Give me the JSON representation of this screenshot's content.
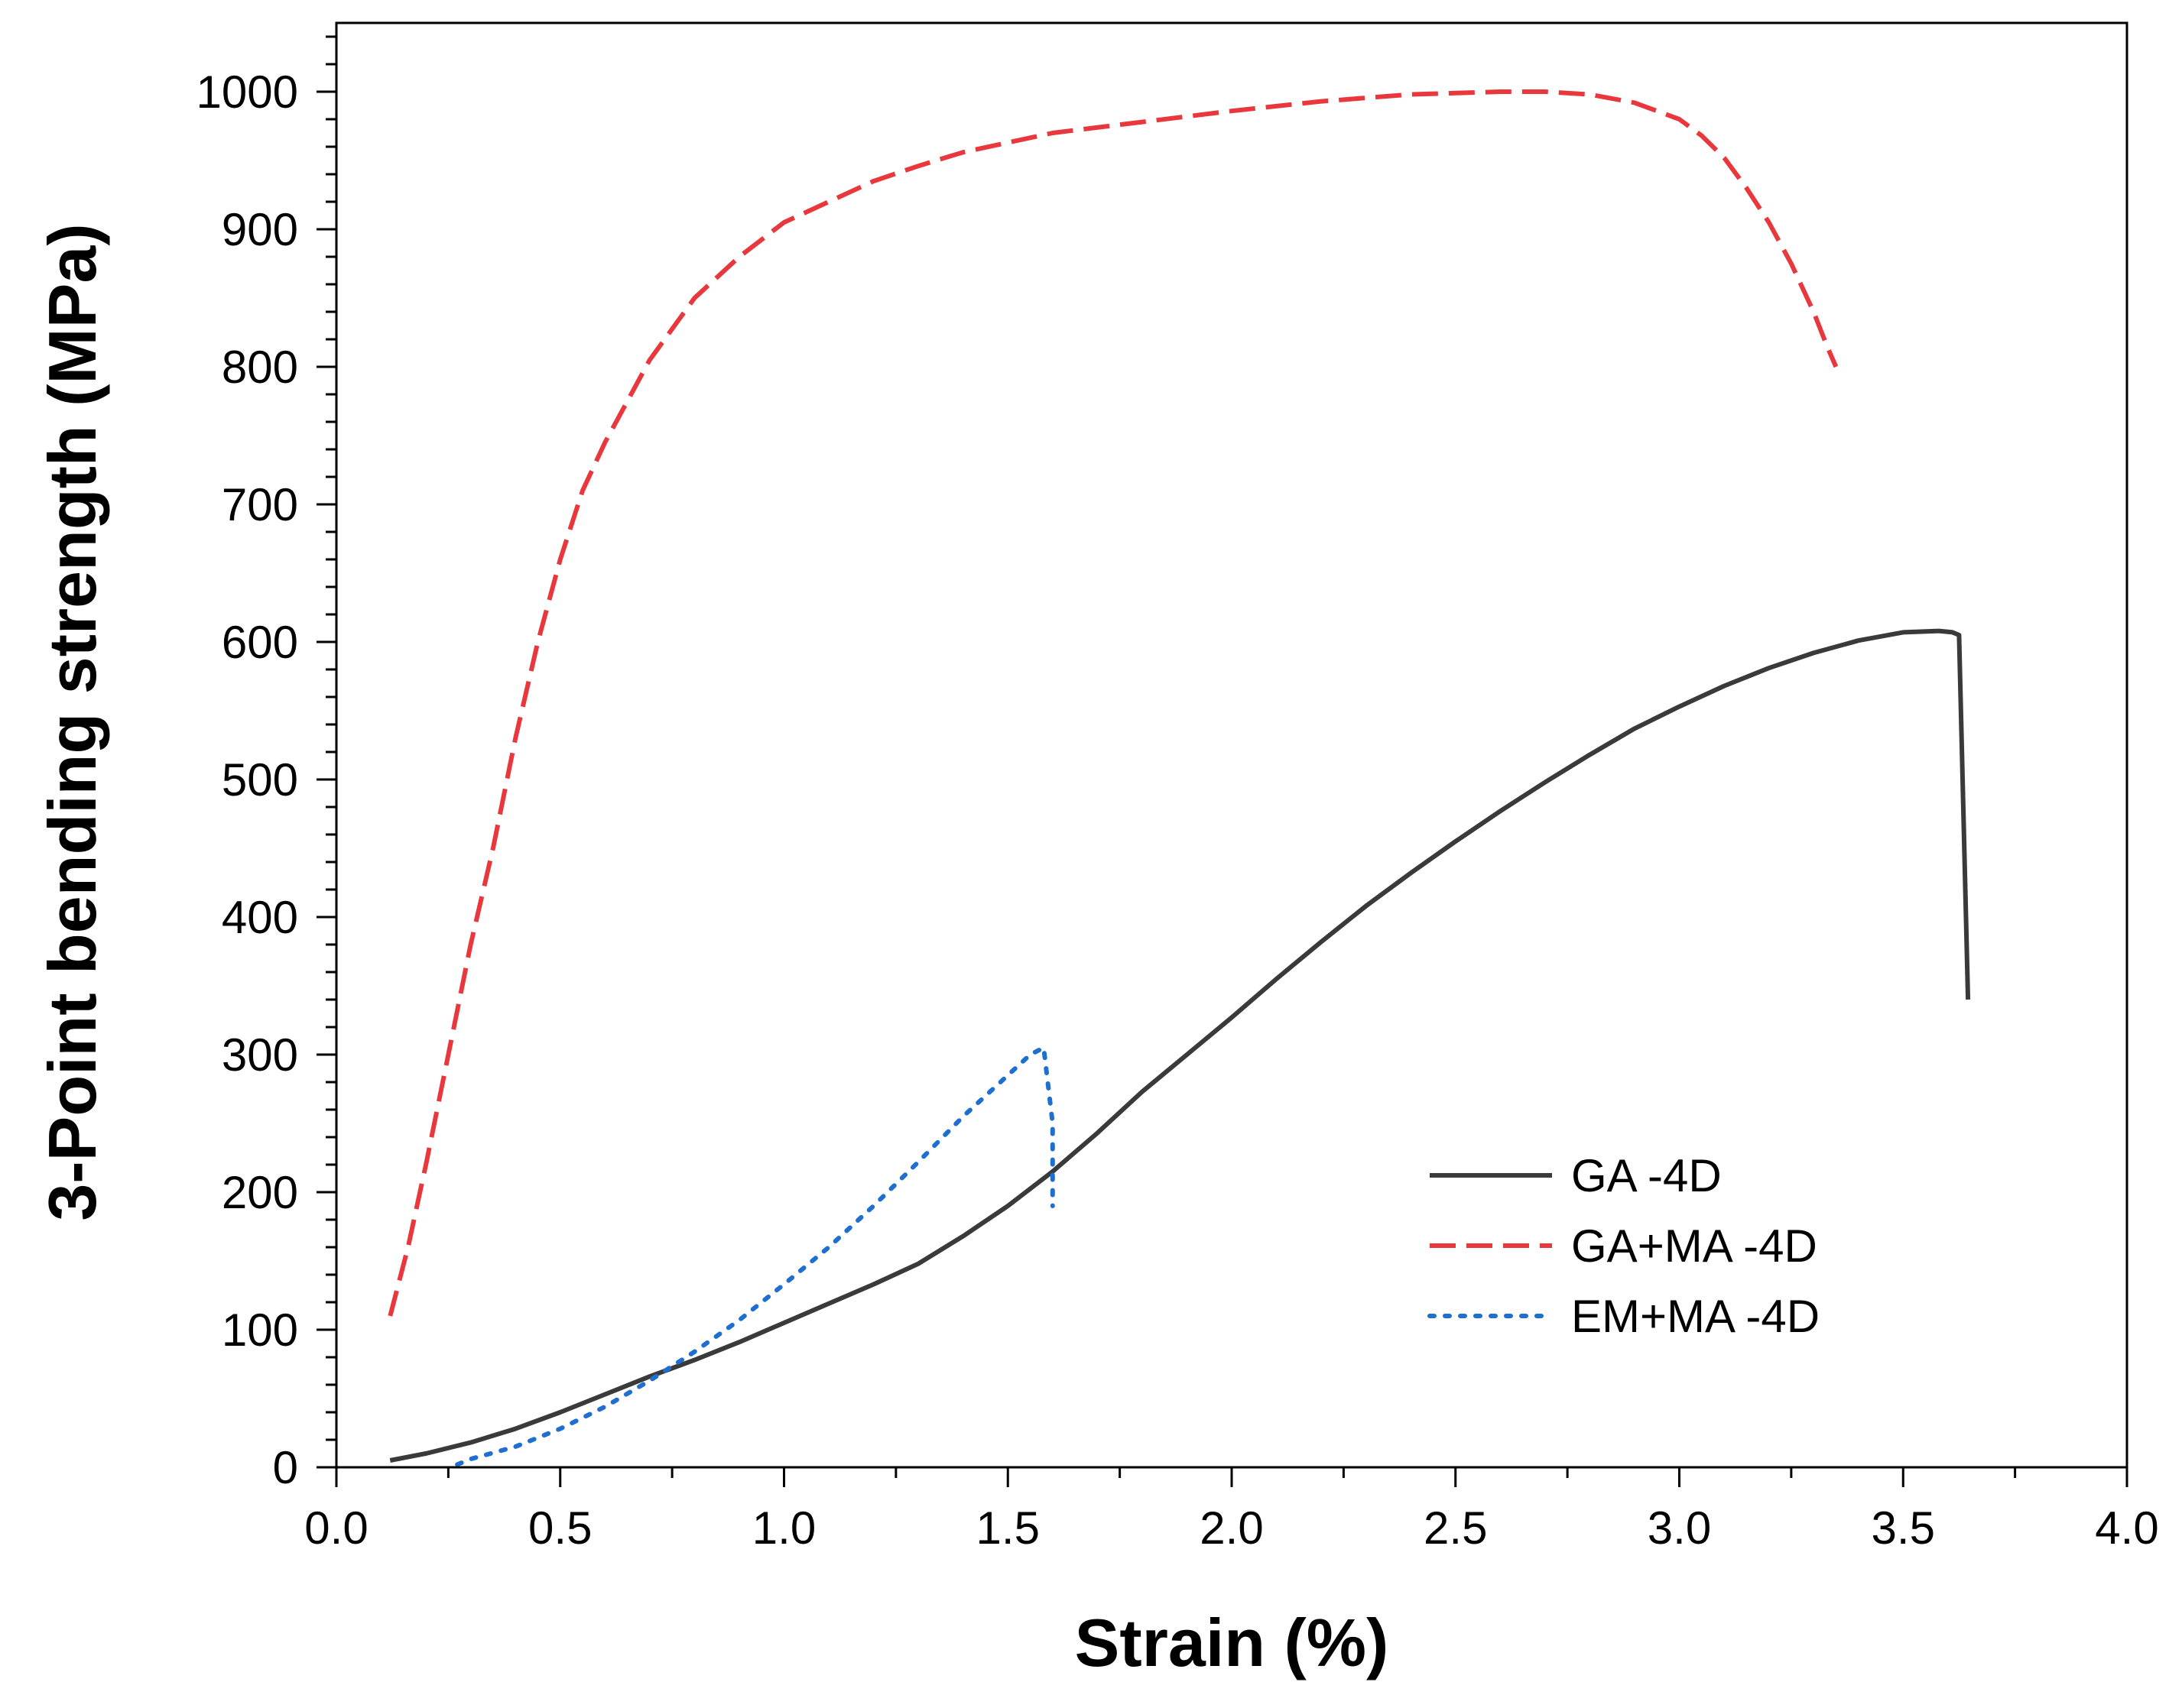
{
  "chart_data": {
    "type": "line",
    "title": "",
    "xlabel": "Strain (%)",
    "ylabel": "3-Point bending strength (MPa)",
    "xlim": [
      0.0,
      4.0
    ],
    "ylim": [
      0,
      1050
    ],
    "x_ticks": [
      0.0,
      0.5,
      1.0,
      1.5,
      2.0,
      2.5,
      3.0,
      3.5,
      4.0
    ],
    "x_tick_labels": [
      "0.0",
      "0.5",
      "1.0",
      "1.5",
      "2.0",
      "2.5",
      "3.0",
      "3.5",
      "4.0"
    ],
    "y_ticks": [
      0,
      100,
      200,
      300,
      400,
      500,
      600,
      700,
      800,
      900,
      1000
    ],
    "y_tick_labels": [
      "0",
      "100",
      "200",
      "300",
      "400",
      "500",
      "600",
      "700",
      "800",
      "900",
      "1000"
    ],
    "grid": false,
    "legend_position": "lower-right",
    "series": [
      {
        "name": "GA -4D",
        "color": "#3a3a3a",
        "style": "solid",
        "x": [
          0.12,
          0.2,
          0.3,
          0.4,
          0.5,
          0.6,
          0.7,
          0.8,
          0.9,
          1.0,
          1.1,
          1.2,
          1.3,
          1.4,
          1.5,
          1.6,
          1.7,
          1.8,
          1.9,
          2.0,
          2.1,
          2.2,
          2.3,
          2.4,
          2.5,
          2.6,
          2.7,
          2.8,
          2.9,
          3.0,
          3.1,
          3.2,
          3.3,
          3.4,
          3.5,
          3.58,
          3.61,
          3.625,
          3.645
        ],
        "y": [
          5,
          10,
          18,
          28,
          40,
          53,
          66,
          78,
          91,
          105,
          119,
          133,
          148,
          168,
          190,
          215,
          243,
          273,
          300,
          327,
          355,
          382,
          408,
          432,
          455,
          477,
          498,
          518,
          537,
          553,
          568,
          581,
          592,
          601,
          607,
          608,
          607,
          605,
          340
        ]
      },
      {
        "name": "GA+MA -4D",
        "color": "#e8383d",
        "style": "dashed",
        "x": [
          0.12,
          0.16,
          0.2,
          0.25,
          0.3,
          0.35,
          0.4,
          0.45,
          0.5,
          0.55,
          0.6,
          0.7,
          0.8,
          0.9,
          1.0,
          1.1,
          1.2,
          1.3,
          1.4,
          1.5,
          1.6,
          1.8,
          2.0,
          2.2,
          2.4,
          2.5,
          2.6,
          2.7,
          2.8,
          2.9,
          3.0,
          3.05,
          3.1,
          3.15,
          3.2,
          3.25,
          3.3,
          3.33,
          3.35
        ],
        "y": [
          110,
          160,
          220,
          300,
          380,
          450,
          530,
          600,
          660,
          710,
          745,
          805,
          850,
          880,
          905,
          920,
          935,
          946,
          956,
          963,
          970,
          978,
          986,
          993,
          998,
          999,
          1000,
          1000,
          998,
          992,
          980,
          968,
          952,
          930,
          905,
          875,
          840,
          815,
          800
        ]
      },
      {
        "name": "EM+MA -4D",
        "color": "#1f6fd0",
        "style": "dotted",
        "x": [
          0.27,
          0.3,
          0.4,
          0.5,
          0.6,
          0.7,
          0.8,
          0.9,
          1.0,
          1.1,
          1.2,
          1.3,
          1.4,
          1.5,
          1.55,
          1.58,
          1.6,
          1.6
        ],
        "y": [
          2,
          6,
          15,
          28,
          44,
          63,
          84,
          107,
          133,
          160,
          190,
          222,
          255,
          285,
          300,
          305,
          250,
          190
        ]
      }
    ]
  }
}
